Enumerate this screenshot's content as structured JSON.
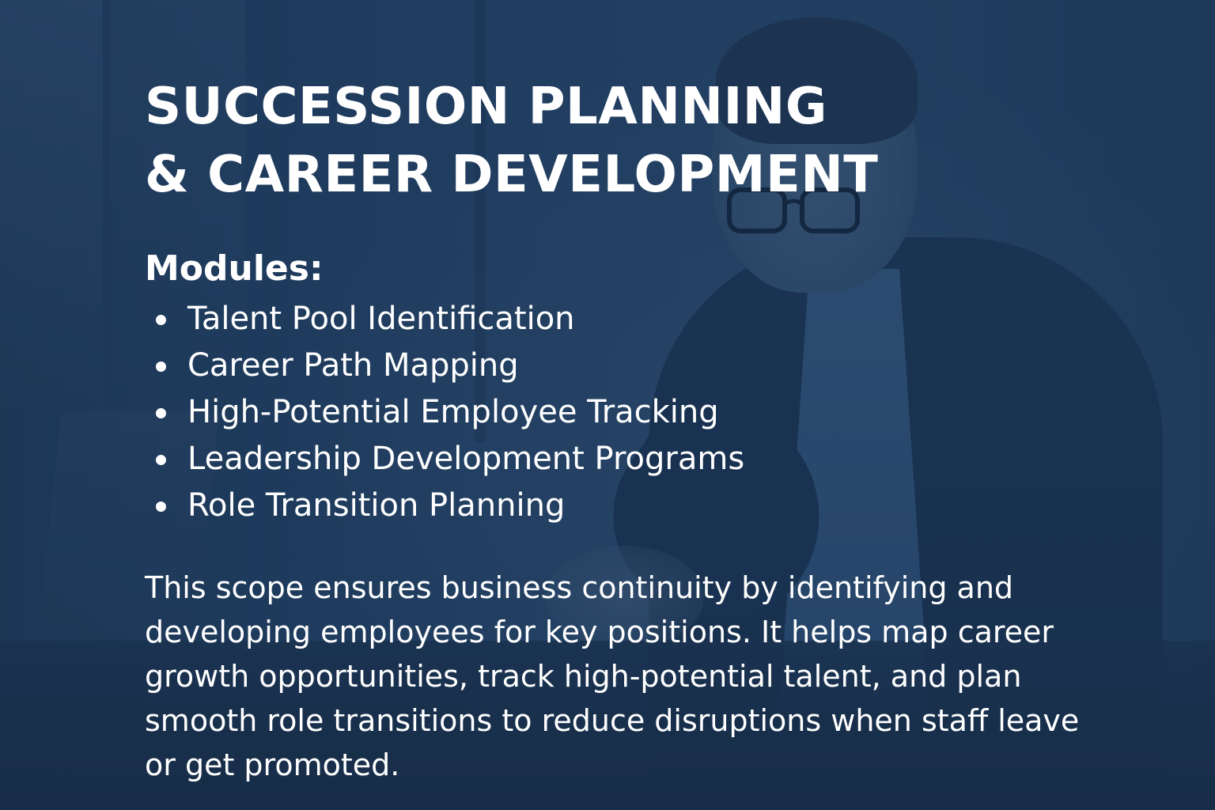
{
  "title": {
    "line1": "SUCCESSION PLANNING",
    "line2": "& CAREER DEVELOPMENT"
  },
  "modules": {
    "heading": "Modules:",
    "items": [
      "Talent Pool Identification",
      "Career Path Mapping",
      "High-Potential Employee Tracking",
      "Leadership Development Programs",
      "Role Transition Planning"
    ]
  },
  "description": "This scope ensures business continuity by identifying and developing employees for key positions. It helps map career growth opportunities, track high-potential talent, and plan smooth role transitions to reduce disruptions when staff leave or get promoted.",
  "colors": {
    "overlay": "#1e3a5c",
    "text": "#ffffff"
  }
}
